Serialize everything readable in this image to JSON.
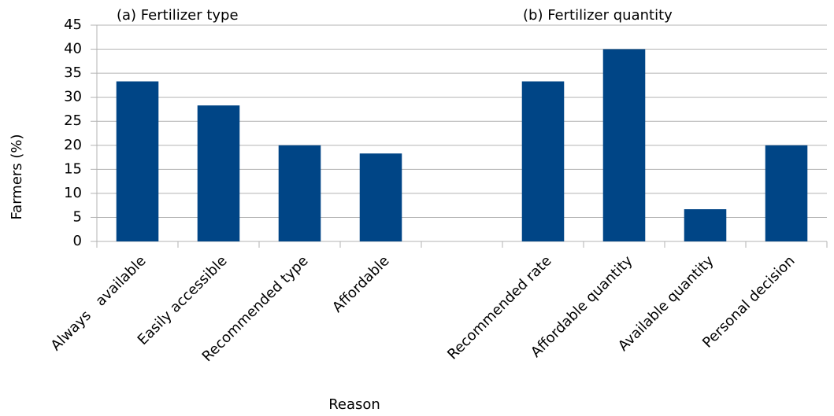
{
  "chart_data": {
    "type": "bar",
    "annotations": [
      "(a) Fertilizer type",
      "(b) Fertilizer quantity"
    ],
    "x_label": "Reason",
    "y_label": "Farmers (%)",
    "categories": [
      "Always   available",
      "Easily accessible",
      "Recommended type",
      "Affordable",
      null,
      "Recommended rate",
      "Affordable quantity",
      "Available quantity",
      "Personal decision"
    ],
    "values": [
      33.3,
      28.3,
      20,
      18.3,
      null,
      33.3,
      40,
      6.7,
      20
    ],
    "color": "#004586",
    "ylim": [
      0,
      45
    ],
    "yticks": [
      0,
      5,
      10,
      15,
      20,
      25,
      30,
      35,
      40,
      45
    ],
    "grid": true
  }
}
